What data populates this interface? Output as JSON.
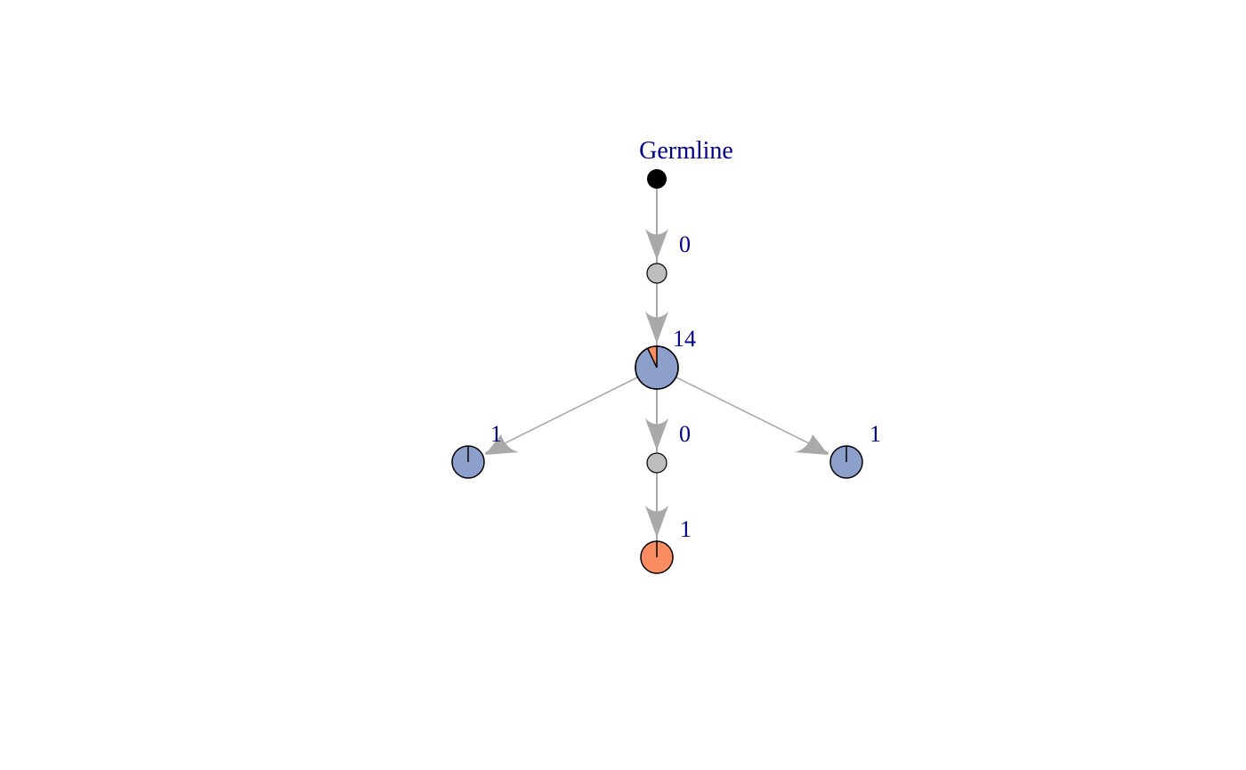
{
  "diagram": {
    "type": "clone-tree",
    "colors": {
      "blue": "#8da0cb",
      "orange": "#fc8d62",
      "gray": "#bebebe",
      "germline": "#000000",
      "edge": "#a9a9a9",
      "label": "#00008b"
    },
    "nodes": {
      "germline": {
        "label": "Germline",
        "kind": "germline"
      },
      "inferred_a": {
        "label": "0",
        "kind": "inferred"
      },
      "main_clone": {
        "label": "14",
        "kind": "pie",
        "slices": [
          {
            "color": "orange",
            "fraction": 0.07
          },
          {
            "color": "blue",
            "fraction": 0.93
          }
        ]
      },
      "left_clone": {
        "label": "1",
        "kind": "pie",
        "slices": [
          {
            "color": "blue",
            "fraction": 1.0
          }
        ]
      },
      "inferred_b": {
        "label": "0",
        "kind": "inferred"
      },
      "right_clone": {
        "label": "1",
        "kind": "pie",
        "slices": [
          {
            "color": "blue",
            "fraction": 1.0
          }
        ]
      },
      "bottom_clone": {
        "label": "1",
        "kind": "pie",
        "slices": [
          {
            "color": "orange",
            "fraction": 1.0
          }
        ]
      }
    },
    "edges": [
      {
        "from": "germline",
        "to": "inferred_a"
      },
      {
        "from": "inferred_a",
        "to": "main_clone"
      },
      {
        "from": "main_clone",
        "to": "left_clone"
      },
      {
        "from": "main_clone",
        "to": "inferred_b"
      },
      {
        "from": "main_clone",
        "to": "right_clone"
      },
      {
        "from": "inferred_b",
        "to": "bottom_clone"
      }
    ]
  }
}
